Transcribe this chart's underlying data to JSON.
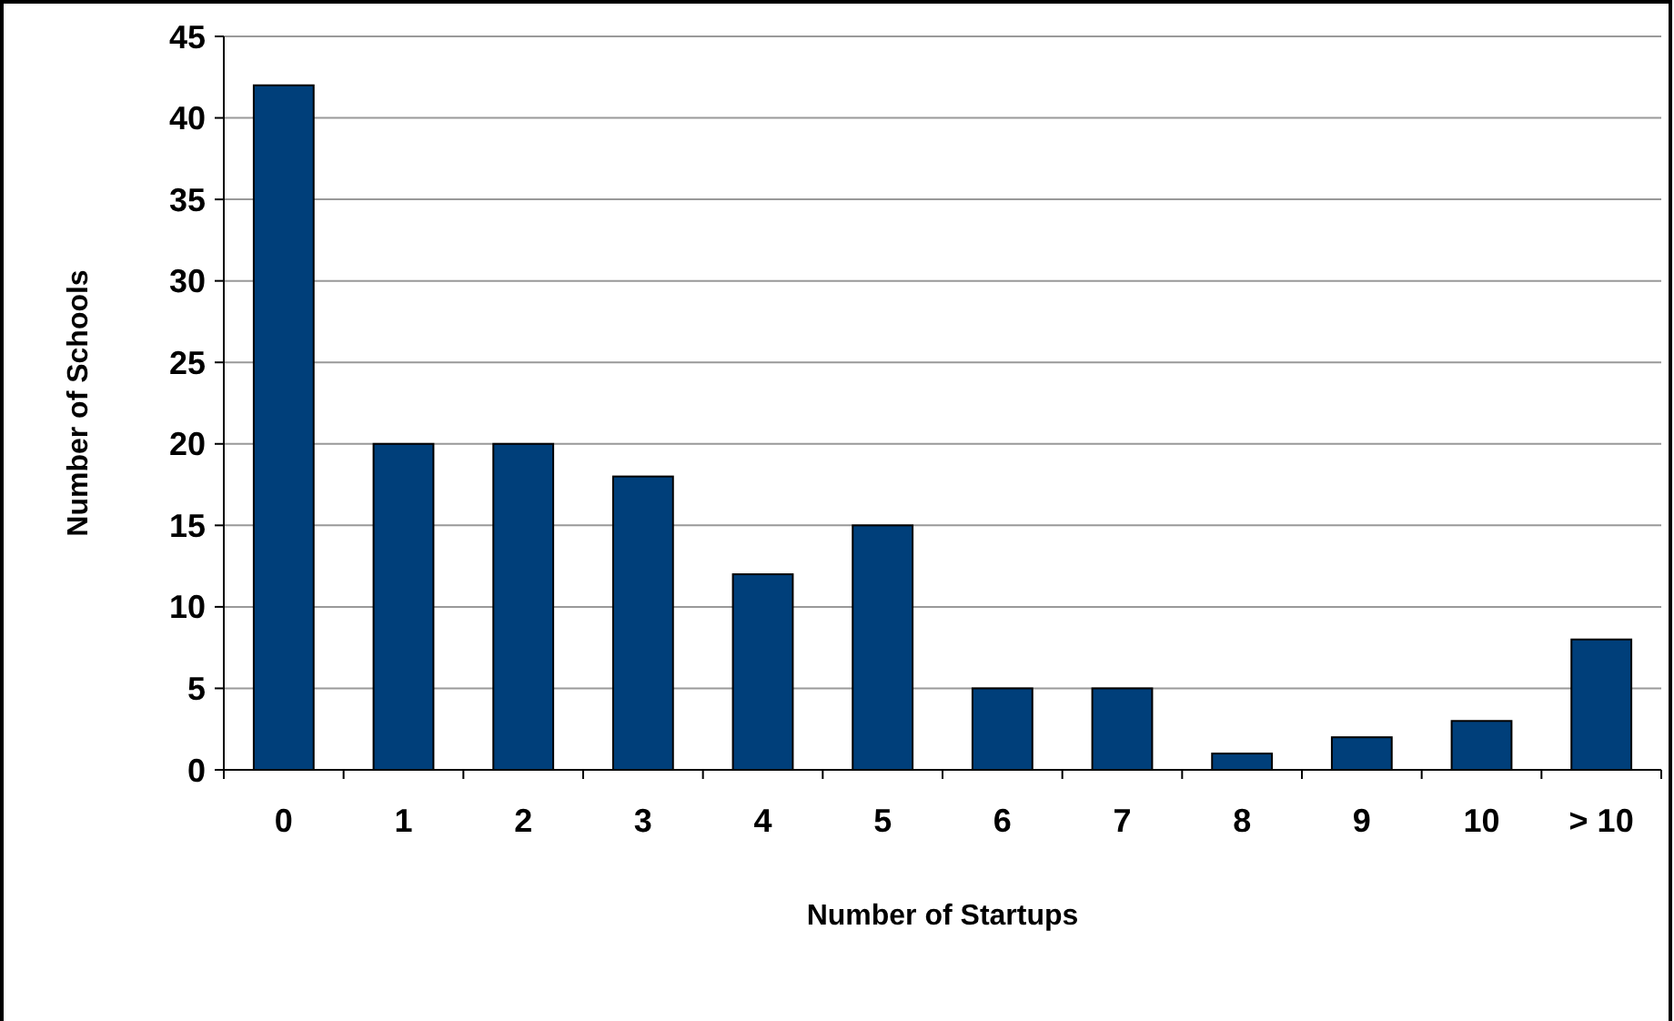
{
  "chart_data": {
    "type": "bar",
    "xlabel": "Number of Startups",
    "ylabel": "Number of Schools",
    "categories": [
      "0",
      "1",
      "2",
      "3",
      "4",
      "5",
      "6",
      "7",
      "8",
      "9",
      "10",
      "> 10"
    ],
    "values": [
      42,
      20,
      20,
      18,
      12,
      15,
      5,
      5,
      1,
      2,
      3,
      8
    ],
    "color": "#003f7a",
    "ylim": [
      0,
      45
    ],
    "yticks": [
      0,
      5,
      10,
      15,
      20,
      25,
      30,
      35,
      40,
      45
    ],
    "grid": "y"
  }
}
